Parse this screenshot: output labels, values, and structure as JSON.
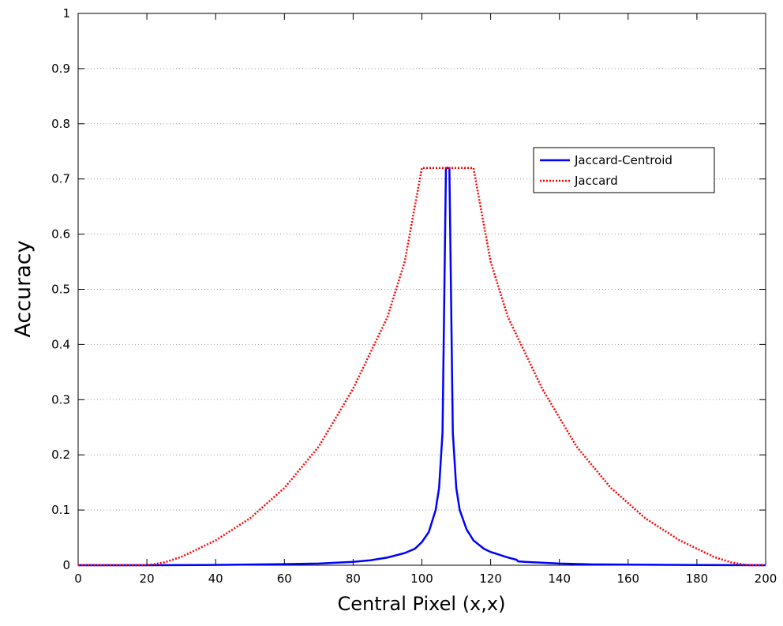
{
  "chart_data": {
    "type": "line",
    "xlabel": "Central Pixel (x,x)",
    "ylabel": "Accuracy",
    "xlim": [
      0,
      200
    ],
    "ylim": [
      0,
      1
    ],
    "xticks": [
      0,
      20,
      40,
      60,
      80,
      100,
      120,
      140,
      160,
      180,
      200
    ],
    "yticks": [
      0,
      0.1,
      0.2,
      0.3,
      0.4,
      0.5,
      0.6,
      0.7,
      0.8,
      0.9,
      1
    ],
    "grid": true,
    "legend": "upper right",
    "series": [
      {
        "name": "Jaccard-Centroid",
        "color": "#0000ff",
        "style": "solid",
        "x": [
          0,
          20,
          40,
          60,
          70,
          80,
          85,
          90,
          95,
          98,
          100,
          102,
          104,
          105,
          106,
          107,
          108,
          109,
          110,
          111,
          113,
          115,
          118,
          120,
          125,
          127.5,
          128,
          130,
          140,
          150,
          160,
          180,
          200
        ],
        "values": [
          0,
          0,
          0.0005,
          0.002,
          0.003,
          0.006,
          0.009,
          0.014,
          0.022,
          0.03,
          0.042,
          0.06,
          0.1,
          0.14,
          0.24,
          0.72,
          0.72,
          0.24,
          0.14,
          0.1,
          0.065,
          0.045,
          0.03,
          0.024,
          0.014,
          0.01,
          0.007,
          0.006,
          0.003,
          0.0015,
          0.001,
          0.0003,
          0
        ]
      },
      {
        "name": "Jaccard",
        "color": "#ff0000",
        "style": "dotted",
        "x": [
          0,
          20,
          25,
          30,
          40,
          50,
          60,
          70,
          80,
          90,
          95,
          100,
          107,
          115,
          120,
          125,
          135,
          145,
          155,
          165,
          175,
          185,
          190,
          195,
          200
        ],
        "values": [
          0,
          0,
          0.005,
          0.015,
          0.045,
          0.085,
          0.14,
          0.215,
          0.32,
          0.45,
          0.55,
          0.72,
          0.72,
          0.72,
          0.55,
          0.45,
          0.32,
          0.215,
          0.14,
          0.085,
          0.045,
          0.015,
          0.005,
          0,
          0
        ]
      }
    ]
  }
}
